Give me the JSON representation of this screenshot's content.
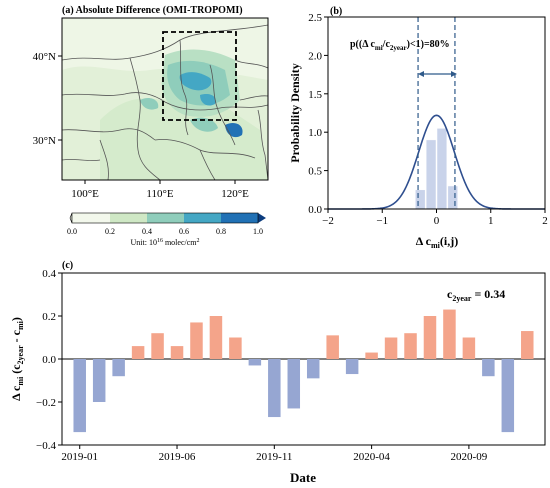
{
  "panel_a": {
    "title": "(a) Absolute Difference (OMI-TROPOMI)",
    "lat_labels": [
      "40°N",
      "30°N"
    ],
    "lon_labels": [
      "100°E",
      "110°E",
      "120°E"
    ],
    "colorbar": {
      "ticks": [
        "0.0",
        "0.2",
        "0.4",
        "0.6",
        "0.8",
        "1.0"
      ],
      "unit_prefix": "Unit: 10",
      "unit_exp": "16",
      "unit_suffix": " molec/cm",
      "unit_sq": "2",
      "colors": [
        "#f3f8ec",
        "#cfe8c5",
        "#8fcdbb",
        "#44a7c4",
        "#2171b5",
        "#0b3c7e"
      ]
    }
  },
  "panel_b": {
    "label": "(b)",
    "annotation_pre": "p((Δ c",
    "annotation_sub1": "mi",
    "annotation_mid": "/c",
    "annotation_sub2": "2year",
    "annotation_post": ")<1)=80%",
    "ylabel": "Probability Density",
    "xlabel_main": "Δ c",
    "xlabel_sub": "mi",
    "xlabel_tail": "(i,j)",
    "xticks": [
      "−2",
      "−1",
      "0",
      "1",
      "2"
    ],
    "yticks": [
      "0.0",
      "0.5",
      "1.0",
      "1.5",
      "2.0",
      "2.5"
    ]
  },
  "panel_c": {
    "label": "(c)",
    "annotation_main": "c",
    "annotation_sub": "2year",
    "annotation_value": " = 0.34",
    "ylabel_main": "Δ c",
    "ylabel_sub1": "mi",
    "ylabel_mid": " (c",
    "ylabel_sub2": "2year",
    "ylabel_mid2": " - c",
    "ylabel_sub3": "mi",
    "ylabel_end": ")",
    "xlabel": "Date",
    "xtick_labels": [
      "2019-01",
      "2019-06",
      "2019-11",
      "2020-04",
      "2020-09"
    ],
    "ytick_labels": [
      "−0.4",
      "−0.2",
      "0.0",
      "0.2",
      "0.4"
    ]
  },
  "chart_data": [
    {
      "type": "bar",
      "panel": "b",
      "x": [
        -0.3,
        -0.1,
        0.1,
        0.3
      ],
      "values": [
        0.25,
        0.9,
        1.05,
        0.3
      ],
      "xlim": [
        -2,
        2
      ],
      "ylim": [
        0,
        2.5
      ],
      "fit_curve": {
        "type": "normal",
        "mean": 0,
        "peak": 1.22,
        "sd": 0.33
      },
      "dashed_lines_x": [
        -0.34,
        0.34
      ],
      "ylabel": "Probability Density",
      "colors": {
        "bars": "#c9d3ea",
        "curve": "#2f4f8f",
        "dashed": "#2f5a8a"
      }
    },
    {
      "type": "bar",
      "panel": "c",
      "categories": [
        "2019-01",
        "2019-02",
        "2019-03",
        "2019-04",
        "2019-05",
        "2019-06",
        "2019-07",
        "2019-08",
        "2019-09",
        "2019-10",
        "2019-11",
        "2019-12",
        "2020-01",
        "2020-02",
        "2020-03",
        "2020-04",
        "2020-05",
        "2020-06",
        "2020-07",
        "2020-08",
        "2020-09",
        "2020-10",
        "2020-11",
        "2020-12"
      ],
      "values": [
        -0.34,
        -0.2,
        -0.08,
        0.06,
        0.12,
        0.06,
        0.17,
        0.2,
        0.1,
        -0.03,
        -0.27,
        -0.23,
        -0.09,
        0.11,
        -0.07,
        0.03,
        0.1,
        0.12,
        0.2,
        0.23,
        0.1,
        -0.08,
        -0.34,
        0.13
      ],
      "ylim": [
        -0.4,
        0.4
      ],
      "xlabel": "Date",
      "colors": {
        "positive": "#f4a48a",
        "negative": "#96a6d2"
      }
    }
  ]
}
